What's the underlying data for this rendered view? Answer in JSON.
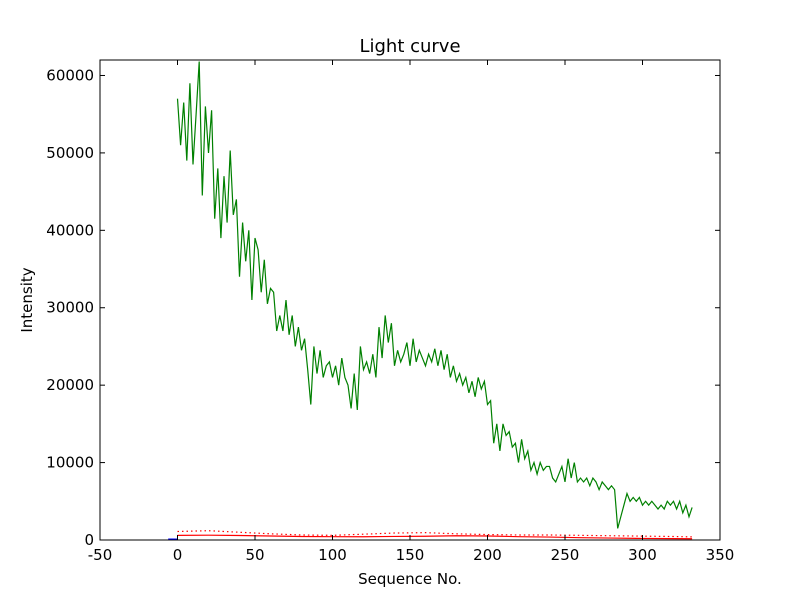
{
  "chart_data": {
    "type": "line",
    "title": "Light curve",
    "xlabel": "Sequence No.",
    "ylabel": "Intensity",
    "xlim": [
      -50,
      350
    ],
    "ylim": [
      0,
      62000
    ],
    "xticks": [
      -50,
      0,
      50,
      100,
      150,
      200,
      250,
      300,
      350
    ],
    "yticks": [
      0,
      10000,
      20000,
      30000,
      40000,
      50000,
      60000
    ],
    "grid": false,
    "colors": {
      "main": "#008000",
      "red": "#ff0000",
      "blue": "#0000ff"
    },
    "series": [
      {
        "style": "solid",
        "color": "#008000",
        "x": [
          0,
          2,
          4,
          6,
          8,
          10,
          12,
          14,
          16,
          18,
          20,
          22,
          24,
          26,
          28,
          30,
          32,
          34,
          36,
          38,
          40,
          42,
          44,
          46,
          48,
          50,
          52,
          54,
          56,
          58,
          60,
          62,
          64,
          66,
          68,
          70,
          72,
          74,
          76,
          78,
          80,
          82,
          84,
          86,
          88,
          90,
          92,
          94,
          96,
          98,
          100,
          102,
          104,
          106,
          108,
          110,
          112,
          114,
          116,
          118,
          120,
          122,
          124,
          126,
          128,
          130,
          132,
          134,
          136,
          138,
          140,
          142,
          144,
          146,
          148,
          150,
          152,
          154,
          156,
          158,
          160,
          162,
          164,
          166,
          168,
          170,
          172,
          174,
          176,
          178,
          180,
          182,
          184,
          186,
          188,
          190,
          192,
          194,
          196,
          198,
          200,
          202,
          204,
          206,
          208,
          210,
          212,
          214,
          216,
          218,
          220,
          222,
          224,
          226,
          228,
          230,
          232,
          234,
          236,
          238,
          240,
          242,
          244,
          246,
          248,
          250,
          252,
          254,
          256,
          258,
          260,
          262,
          264,
          266,
          268,
          270,
          272,
          274,
          276,
          278,
          280,
          282,
          284,
          286,
          288,
          290,
          292,
          294,
          296,
          298,
          300,
          302,
          304,
          306,
          308,
          310,
          312,
          314,
          316,
          318,
          320,
          322,
          324,
          326,
          328,
          330,
          332
        ],
        "y": [
          57000,
          51000,
          56500,
          49000,
          59000,
          48500,
          55000,
          61800,
          44500,
          56000,
          50000,
          55500,
          41500,
          48000,
          39000,
          47000,
          41000,
          50300,
          42000,
          44000,
          34000,
          41000,
          36000,
          40000,
          31000,
          39000,
          37500,
          32000,
          36200,
          30500,
          32500,
          32000,
          27000,
          29000,
          27000,
          31000,
          26500,
          29000,
          25000,
          27500,
          24500,
          26000,
          22000,
          17500,
          25000,
          21500,
          24500,
          21000,
          22500,
          23000,
          21000,
          22500,
          20000,
          23500,
          21000,
          20000,
          17000,
          21500,
          16800,
          25000,
          22000,
          23000,
          21500,
          24000,
          21000,
          27500,
          23500,
          29000,
          25500,
          28000,
          22500,
          24500,
          23000,
          24000,
          25500,
          22500,
          26000,
          23000,
          24500,
          23500,
          22500,
          24000,
          23000,
          24700,
          22500,
          24500,
          22000,
          24000,
          21000,
          22500,
          20500,
          21500,
          20000,
          21000,
          19000,
          20500,
          18500,
          21000,
          19500,
          20500,
          17500,
          18000,
          12500,
          15000,
          11500,
          15000,
          13500,
          14000,
          12000,
          12500,
          10000,
          13000,
          10500,
          11500,
          9000,
          10000,
          8500,
          10000,
          9000,
          9500,
          9500,
          8000,
          7500,
          8500,
          9500,
          7500,
          10500,
          8000,
          10000,
          7500,
          8000,
          7500,
          8000,
          7000,
          8000,
          7500,
          6500,
          7500,
          7000,
          6500,
          7000,
          6500,
          1500,
          3000,
          4500,
          6000,
          5000,
          5500,
          5000,
          5500,
          4500,
          5000,
          4500,
          5000,
          4500,
          4000,
          4500,
          4000,
          5000,
          4500,
          5000,
          4000,
          5000,
          3500,
          4500,
          3000,
          4200
        ]
      },
      {
        "style": "solid",
        "color": "#ff0000",
        "x": [
          0,
          20,
          40,
          60,
          80,
          100,
          120,
          140,
          160,
          180,
          200,
          220,
          240,
          260,
          280,
          300,
          320,
          332
        ],
        "y": [
          600,
          620,
          580,
          520,
          450,
          430,
          420,
          460,
          480,
          550,
          520,
          430,
          380,
          300,
          250,
          200,
          180,
          160
        ]
      },
      {
        "style": "dotted",
        "color": "#ff0000",
        "x": [
          0,
          20,
          40,
          60,
          80,
          100,
          120,
          140,
          160,
          180,
          200,
          220,
          240,
          260,
          280,
          300,
          320,
          332
        ],
        "y": [
          1100,
          1200,
          1000,
          800,
          650,
          600,
          750,
          900,
          950,
          800,
          700,
          650,
          650,
          600,
          550,
          500,
          450,
          400
        ]
      },
      {
        "style": "solid",
        "color": "#0000ff",
        "x": [
          -6,
          0
        ],
        "y": [
          0,
          0
        ]
      }
    ]
  }
}
